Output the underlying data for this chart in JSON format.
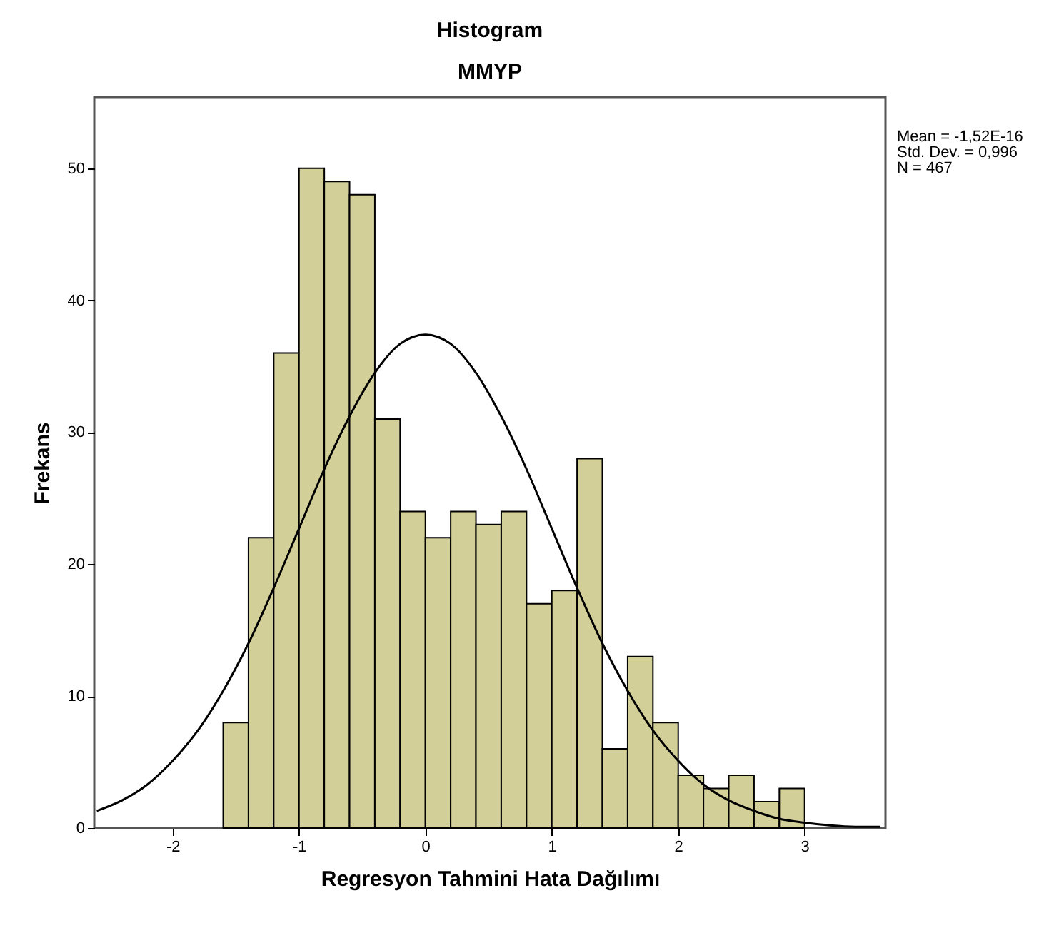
{
  "chart_data": {
    "type": "histogram",
    "title": "Histogram",
    "subtitle": "MMYP",
    "xlabel": "Regresyon Tahmini Hata Dağılımı",
    "ylabel": "Frekans",
    "bins": [
      -1.6,
      -1.4,
      -1.2,
      -1.0,
      -0.8,
      -0.6,
      -0.4,
      -0.2,
      0.0,
      0.2,
      0.4,
      0.6,
      0.8,
      1.0,
      1.2,
      1.4,
      1.6,
      1.8,
      2.0,
      2.2,
      2.4,
      2.6,
      2.8,
      3.0
    ],
    "values": [
      8,
      22,
      36,
      50,
      49,
      48,
      31,
      24,
      22,
      24,
      23,
      24,
      17,
      18,
      28,
      6,
      13,
      8,
      4,
      3,
      4,
      2,
      3
    ],
    "color": "#d3cf98",
    "series": [
      {
        "type": "line",
        "color": "#000000",
        "x": [
          -2.6,
          -2.4,
          -2.2,
          -2.0,
          -1.8,
          -1.6,
          -1.4,
          -1.2,
          -1.0,
          -0.8,
          -0.6,
          -0.4,
          -0.2,
          0.0,
          0.2,
          0.4,
          0.6,
          0.8,
          1.0,
          1.2,
          1.4,
          1.6,
          1.8,
          2.0,
          2.2,
          2.4,
          2.6,
          2.8,
          3.0,
          3.2,
          3.4,
          3.6
        ],
        "values": [
          1.3,
          2.1,
          3.3,
          5.1,
          7.4,
          10.4,
          14.0,
          18.2,
          22.7,
          27.2,
          31.2,
          34.5,
          36.7,
          37.4,
          36.7,
          34.5,
          31.2,
          27.2,
          22.7,
          18.2,
          14.0,
          10.4,
          7.4,
          5.1,
          3.3,
          2.1,
          1.3,
          0.7,
          0.4,
          0.2,
          0.1,
          0.1
        ]
      }
    ],
    "xlim": [
      -2.62,
      3.64
    ],
    "ylim": [
      0,
      55.4
    ],
    "xticks": [
      -2,
      -1,
      0,
      1,
      2,
      3
    ],
    "yticks": [
      0,
      10,
      20,
      30,
      40,
      50
    ],
    "annotations": [
      "Mean = -1,52E-16",
      "Std. Dev. = 0,996",
      "N = 467"
    ],
    "grid": false
  }
}
